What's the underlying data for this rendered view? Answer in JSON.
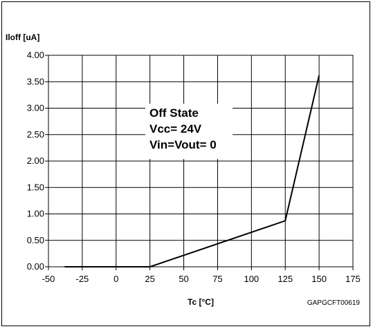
{
  "chart_data": {
    "type": "line",
    "ylabel": "Iloff [uA]",
    "xlabel": "Tc [°C]",
    "figure_code": "GAPGCFT00619",
    "annotation": [
      "Off State",
      "Vcc= 24V",
      "Vin=Vout= 0"
    ],
    "xlim": [
      -50,
      175
    ],
    "ylim": [
      0,
      4
    ],
    "xticks": [
      -50,
      -25,
      0,
      25,
      50,
      75,
      100,
      125,
      150,
      175
    ],
    "xtick_labels": [
      "-50",
      "-25",
      "0",
      "25",
      "50",
      "75",
      "100",
      "125",
      "150",
      "175"
    ],
    "yticks": [
      0,
      0.5,
      1,
      1.5,
      2,
      2.5,
      3,
      3.5,
      4
    ],
    "ytick_labels": [
      "0.00",
      "0.50",
      "1.00",
      "1.50",
      "2.00",
      "2.50",
      "3.00",
      "3.50",
      "4.00"
    ],
    "grid": true,
    "series": [
      {
        "x": [
          -38,
          25,
          125,
          150
        ],
        "y": [
          0,
          0,
          0.87,
          3.62
        ]
      }
    ],
    "colors": {
      "line": "#000000",
      "grid": "#000000",
      "background": "#ffffff"
    }
  }
}
